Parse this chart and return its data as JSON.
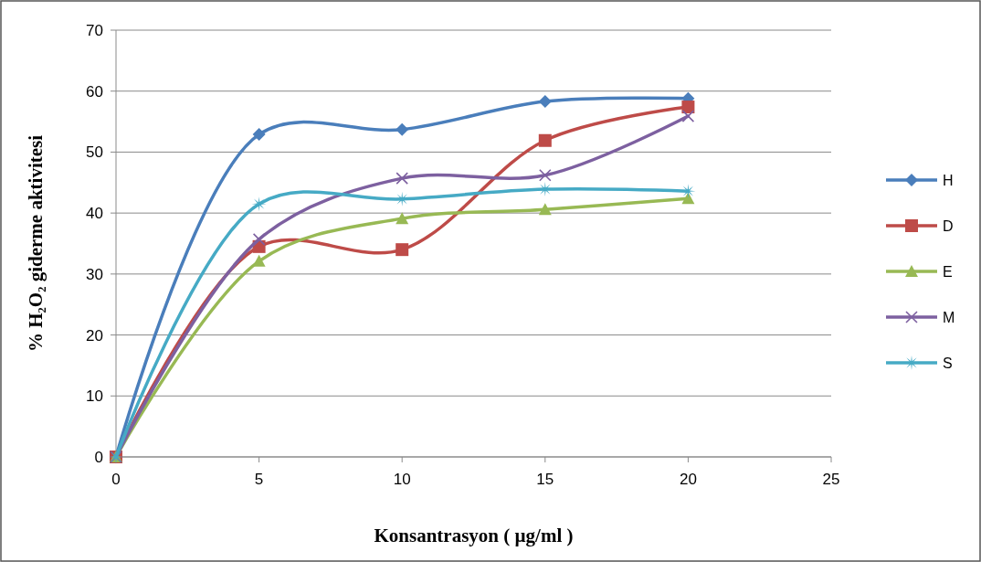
{
  "chart_data": {
    "type": "line",
    "xlabel": "Konsantrasyon ( µg/ml )",
    "ylabel": "% H₂O₂ giderme aktivitesi",
    "x": [
      0,
      5,
      10,
      15,
      20
    ],
    "xlim": [
      0,
      25
    ],
    "xticks": [
      0,
      5,
      10,
      15,
      20,
      25
    ],
    "ylim": [
      0,
      70
    ],
    "yticks": [
      0,
      10,
      20,
      30,
      40,
      50,
      60,
      70
    ],
    "grid": "y",
    "legend": "right",
    "line_style": "solid",
    "series": [
      {
        "name": "H",
        "color": "#4a7ebb",
        "marker": "diamond",
        "values": [
          0,
          52.9,
          53.7,
          58.3,
          58.8
        ]
      },
      {
        "name": "D",
        "color": "#be4b48",
        "marker": "square",
        "values": [
          0,
          34.5,
          34.0,
          51.9,
          57.4
        ]
      },
      {
        "name": "E",
        "color": "#98b954",
        "marker": "triangle",
        "values": [
          0,
          32.1,
          39.1,
          40.6,
          42.4
        ]
      },
      {
        "name": "M",
        "color": "#7d60a0",
        "marker": "cross",
        "values": [
          0,
          35.7,
          45.7,
          46.2,
          55.9
        ]
      },
      {
        "name": "S",
        "color": "#46aac5",
        "marker": "star",
        "values": [
          0,
          41.5,
          42.3,
          43.9,
          43.6
        ]
      }
    ]
  }
}
